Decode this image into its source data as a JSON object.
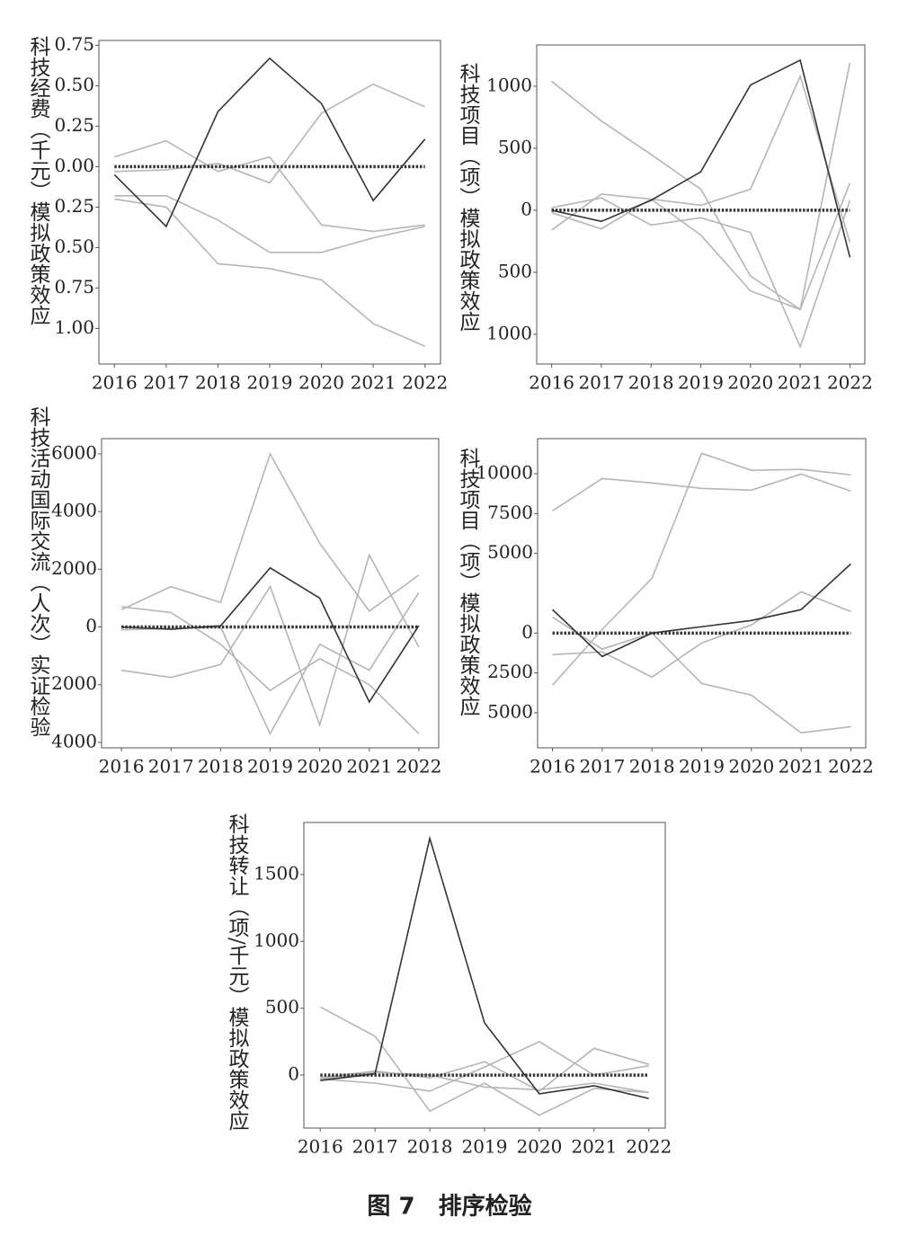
{
  "chart_data": [
    {
      "type": "line",
      "y_label": "科技经费（千元）模拟政策效应",
      "x": [
        2016,
        2017,
        2018,
        2019,
        2020,
        2021,
        2022
      ],
      "xlim": [
        2015.7,
        2022.3
      ],
      "xticks": [
        2016,
        2017,
        2018,
        2019,
        2020,
        2021,
        2022
      ],
      "ylim": [
        -1.22,
        0.78
      ],
      "yticks": [
        0.75,
        {
          "value": 0.5,
          "label": "0.50"
        },
        0.25,
        {
          "value": 0,
          "label": "0.00"
        },
        {
          "value": -0.25,
          "label": "0.25"
        },
        {
          "value": -0.5,
          "label": "0.50"
        },
        {
          "value": -0.75,
          "label": "0.75"
        },
        {
          "value": -1,
          "label": "1.00"
        }
      ],
      "series": [
        {
          "color": "#b5b5b5",
          "values": [
            0.06,
            0.16,
            -0.03,
            0.06,
            -0.36,
            -0.4,
            -0.36
          ]
        },
        {
          "color": "#b5b5b5",
          "values": [
            -0.18,
            -0.18,
            -0.33,
            -0.53,
            -0.53,
            -0.44,
            -0.37
          ]
        },
        {
          "color": "#b5b5b5",
          "values": [
            -0.2,
            -0.25,
            -0.6,
            -0.63,
            -0.7,
            -0.97,
            -1.11
          ]
        },
        {
          "color": "#b5b5b5",
          "values": [
            -0.03,
            -0.02,
            0.02,
            -0.1,
            0.33,
            0.51,
            0.37
          ]
        },
        {
          "color": "#333333",
          "values": [
            -0.05,
            -0.37,
            0.34,
            0.67,
            0.39,
            -0.21,
            0.17
          ]
        },
        {
          "color": "#333333",
          "style": "dotted",
          "values": [
            0,
            0,
            0,
            0,
            0,
            0,
            0
          ]
        }
      ]
    },
    {
      "type": "line",
      "y_label": "科技项目（项）模拟政策效应",
      "x": [
        2016,
        2017,
        2018,
        2019,
        2020,
        2021,
        2022
      ],
      "xlim": [
        2015.7,
        2022.3
      ],
      "xticks": [
        2016,
        2017,
        2018,
        2019,
        2020,
        2021,
        2022
      ],
      "ylim": [
        -1240,
        1333
      ],
      "yticks": [
        1000,
        500,
        0,
        {
          "value": -500,
          "label": "500"
        },
        {
          "value": -1000,
          "label": "1000"
        }
      ],
      "series": [
        {
          "color": "#b5b5b5",
          "values": [
            1040,
            720,
            450,
            170,
            -530,
            -800,
            220
          ]
        },
        {
          "color": "#b5b5b5",
          "values": [
            -160,
            130,
            90,
            40,
            170,
            1080,
            -260
          ]
        },
        {
          "color": "#b5b5b5",
          "values": [
            -20,
            -150,
            90,
            -200,
            -650,
            -800,
            1190
          ]
        },
        {
          "color": "#b5b5b5",
          "values": [
            20,
            100,
            -120,
            -60,
            -180,
            -1100,
            80
          ]
        },
        {
          "color": "#333333",
          "values": [
            0,
            -90,
            80,
            310,
            1010,
            1210,
            -380
          ]
        },
        {
          "color": "#333333",
          "style": "dotted",
          "values": [
            0,
            0,
            0,
            0,
            0,
            0,
            0
          ]
        }
      ]
    },
    {
      "type": "line",
      "y_label": "科技活动国际交流（人次）实证检验",
      "x": [
        2016,
        2017,
        2018,
        2019,
        2020,
        2021,
        2022
      ],
      "xlim": [
        2015.6,
        2022.4
      ],
      "xticks": [
        2016,
        2017,
        2018,
        2019,
        2020,
        2021,
        2022
      ],
      "ylim": [
        -4190,
        6530
      ],
      "yticks": [
        6000,
        4000,
        2000,
        0,
        {
          "value": -2000,
          "label": "2000"
        },
        {
          "value": -4000,
          "label": "4000"
        }
      ],
      "series": [
        {
          "color": "#b5b5b5",
          "values": [
            600,
            1400,
            850,
            6000,
            2900,
            550,
            1800
          ]
        },
        {
          "color": "#b5b5b5",
          "values": [
            -1500,
            -1750,
            -1300,
            1400,
            -3400,
            2500,
            -700
          ]
        },
        {
          "color": "#b5b5b5",
          "values": [
            700,
            500,
            -600,
            -2200,
            -1100,
            -2000,
            -3700
          ]
        },
        {
          "color": "#b5b5b5",
          "values": [
            -100,
            -50,
            0,
            -3700,
            -600,
            -1500,
            1200
          ]
        },
        {
          "color": "#333333",
          "values": [
            0,
            -80,
            40,
            2050,
            1000,
            -2600,
            50
          ]
        },
        {
          "color": "#333333",
          "style": "dotted",
          "values": [
            0,
            0,
            0,
            0,
            0,
            0,
            0
          ]
        }
      ]
    },
    {
      "type": "line",
      "y_label": "科技项目（项）模拟政策效应",
      "x": [
        2016,
        2017,
        2018,
        2019,
        2020,
        2021,
        2022
      ],
      "xlim": [
        2015.7,
        2022.3
      ],
      "xticks": [
        2016,
        2017,
        2018,
        2019,
        2020,
        2021,
        2022
      ],
      "ylim": [
        -7200,
        12200
      ],
      "yticks": [
        10000,
        7500,
        5000,
        0,
        {
          "value": -2500,
          "label": "2500"
        },
        {
          "value": -5000,
          "label": "5000"
        }
      ],
      "series": [
        {
          "color": "#b5b5b5",
          "values": [
            7670,
            9700,
            9420,
            9080,
            8970,
            9980,
            8910
          ]
        },
        {
          "color": "#b5b5b5",
          "values": [
            -3270,
            230,
            3440,
            11280,
            10210,
            10270,
            9930
          ]
        },
        {
          "color": "#b5b5b5",
          "values": [
            -1350,
            -1180,
            -2760,
            -620,
            510,
            2590,
            1350
          ]
        },
        {
          "color": "#b5b5b5",
          "values": [
            1000,
            -1000,
            0,
            -3160,
            -3890,
            -6260,
            -5870
          ]
        },
        {
          "color": "#333333",
          "values": [
            1470,
            -1470,
            0,
            400,
            790,
            1470,
            4340
          ]
        },
        {
          "color": "#333333",
          "style": "dotted",
          "values": [
            0,
            0,
            0,
            0,
            0,
            0,
            0
          ]
        }
      ]
    },
    {
      "type": "line",
      "y_label": "科技转让（项/千元）模拟政策效应",
      "x": [
        2016,
        2017,
        2018,
        2019,
        2020,
        2021,
        2022
      ],
      "xlim": [
        2015.7,
        2022.3
      ],
      "xticks": [
        2016,
        2017,
        2018,
        2019,
        2020,
        2021,
        2022
      ],
      "ylim": [
        -396,
        1889
      ],
      "yticks": [
        1500,
        1000,
        500,
        0
      ],
      "series": [
        {
          "color": "#b5b5b5",
          "values": [
            510,
            290,
            -270,
            -60,
            -300,
            -100,
            -130
          ]
        },
        {
          "color": "#b5b5b5",
          "values": [
            -20,
            30,
            -20,
            100,
            -120,
            200,
            80
          ]
        },
        {
          "color": "#b5b5b5",
          "values": [
            -30,
            -60,
            -120,
            60,
            250,
            0,
            70
          ]
        },
        {
          "color": "#b5b5b5",
          "values": [
            -30,
            20,
            0,
            -90,
            -110,
            -60,
            -130
          ]
        },
        {
          "color": "#333333",
          "values": [
            -40,
            10,
            1770,
            390,
            -140,
            -80,
            -175
          ]
        },
        {
          "color": "#333333",
          "style": "dotted",
          "values": [
            0,
            0,
            0,
            0,
            0,
            0,
            0
          ]
        }
      ]
    }
  ],
  "caption": "图 7　排序检验"
}
